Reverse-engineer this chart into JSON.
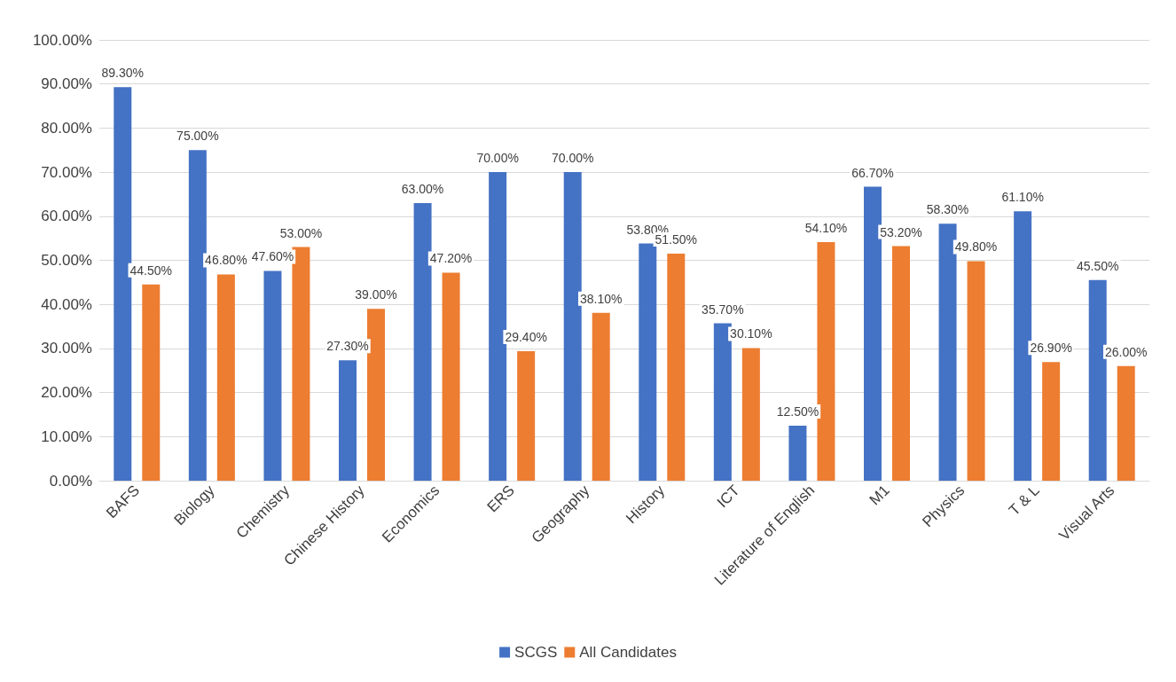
{
  "chart_data": {
    "type": "bar",
    "categories": [
      "BAFS",
      "Biology",
      "Chemistry",
      "Chinese History",
      "Economics",
      "ERS",
      "Geography",
      "History",
      "ICT",
      "Literature of English",
      "M1",
      "Physics",
      "T & L",
      "Visual Arts"
    ],
    "series": [
      {
        "name": "SCGS",
        "color": "#4472c4",
        "values": [
          89.3,
          75.0,
          47.6,
          27.3,
          63.0,
          70.0,
          70.0,
          53.8,
          35.7,
          12.5,
          66.7,
          58.3,
          61.1,
          45.5
        ],
        "value_labels": [
          "89.30%",
          "75.00%",
          "47.60%",
          "27.30%",
          "63.00%",
          "70.00%",
          "70.00%",
          "53.80%",
          "35.70%",
          "12.50%",
          "66.70%",
          "58.30%",
          "61.10%",
          "45.50%"
        ]
      },
      {
        "name": "All Candidates",
        "color": "#ed7d31",
        "values": [
          44.5,
          46.8,
          53.0,
          39.0,
          47.2,
          29.4,
          38.1,
          51.5,
          30.1,
          54.1,
          53.2,
          49.8,
          26.9,
          26.0
        ],
        "value_labels": [
          "44.50%",
          "46.80%",
          "53.00%",
          "39.00%",
          "47.20%",
          "29.40%",
          "38.10%",
          "51.50%",
          "30.10%",
          "54.10%",
          "53.20%",
          "49.80%",
          "26.90%",
          "26.00%"
        ]
      }
    ],
    "ylim": [
      0,
      100
    ],
    "yticks": [
      {
        "value": 0,
        "label": "0.00%"
      },
      {
        "value": 10,
        "label": "10.00%"
      },
      {
        "value": 20,
        "label": "20.00%"
      },
      {
        "value": 30,
        "label": "30.00%"
      },
      {
        "value": 40,
        "label": "40.00%"
      },
      {
        "value": 50,
        "label": "50.00%"
      },
      {
        "value": 60,
        "label": "60.00%"
      },
      {
        "value": 70,
        "label": "70.00%"
      },
      {
        "value": 80,
        "label": "80.00%"
      },
      {
        "value": 90,
        "label": "90.00%"
      },
      {
        "value": 100,
        "label": "100.00%"
      }
    ],
    "grid": "y",
    "legend": "bottom"
  }
}
